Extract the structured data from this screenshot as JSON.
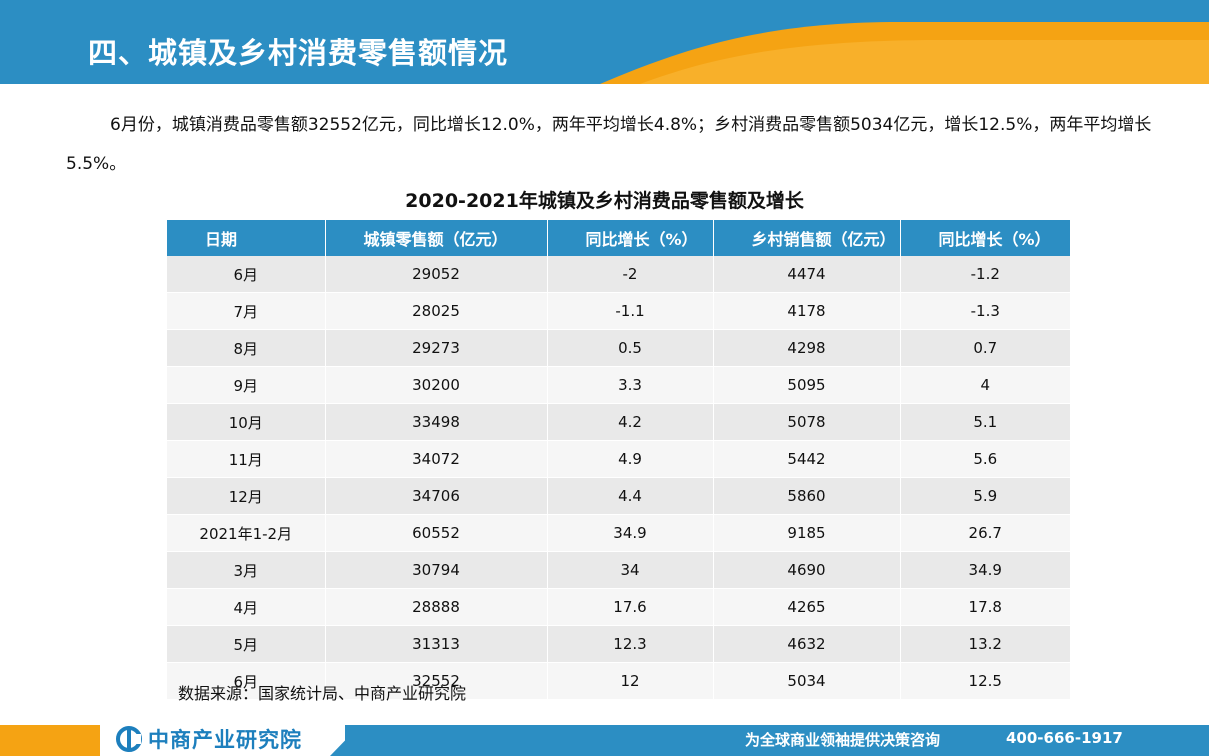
{
  "header": {
    "title": "四、城镇及乡村消费零售额情况"
  },
  "intro": {
    "text": "6月份，城镇消费品零售额32552亿元，同比增长12.0%，两年平均增长4.8%；乡村消费品零售额5034亿元，增长12.5%，两年平均增长5.5%。"
  },
  "table": {
    "title": "2020-2021年城镇及乡村消费品零售额及增长",
    "columns": [
      "日期",
      "城镇零售额（亿元）",
      "同比增长（%）",
      "乡村销售额（亿元）",
      "同比增长（%）"
    ],
    "rows": [
      [
        "6月",
        "29052",
        "-2",
        "4474",
        "-1.2"
      ],
      [
        "7月",
        "28025",
        "-1.1",
        "4178",
        "-1.3"
      ],
      [
        "8月",
        "29273",
        "0.5",
        "4298",
        "0.7"
      ],
      [
        "9月",
        "30200",
        "3.3",
        "5095",
        "4"
      ],
      [
        "10月",
        "33498",
        "4.2",
        "5078",
        "5.1"
      ],
      [
        "11月",
        "34072",
        "4.9",
        "5442",
        "5.6"
      ],
      [
        "12月",
        "34706",
        "4.4",
        "5860",
        "5.9"
      ],
      [
        "2021年1-2月",
        "60552",
        "34.9",
        "9185",
        "26.7"
      ],
      [
        "3月",
        "30794",
        "34",
        "4690",
        "34.9"
      ],
      [
        "4月",
        "28888",
        "17.6",
        "4265",
        "17.8"
      ],
      [
        "5月",
        "31313",
        "12.3",
        "4632",
        "13.2"
      ],
      [
        "6月",
        "32552",
        "12",
        "5034",
        "12.5"
      ]
    ]
  },
  "source": {
    "text": "数据来源：国家统计局、中商产业研究院"
  },
  "footer": {
    "logo_text": "中商产业研究院",
    "slogan": "为全球商业领袖提供决策咨询",
    "phone": "400-666-1917"
  },
  "colors": {
    "primary_blue": "#2c8ec3",
    "accent_orange": "#f5a313",
    "row_odd": "#e9e9e9",
    "row_even": "#f6f6f6"
  }
}
